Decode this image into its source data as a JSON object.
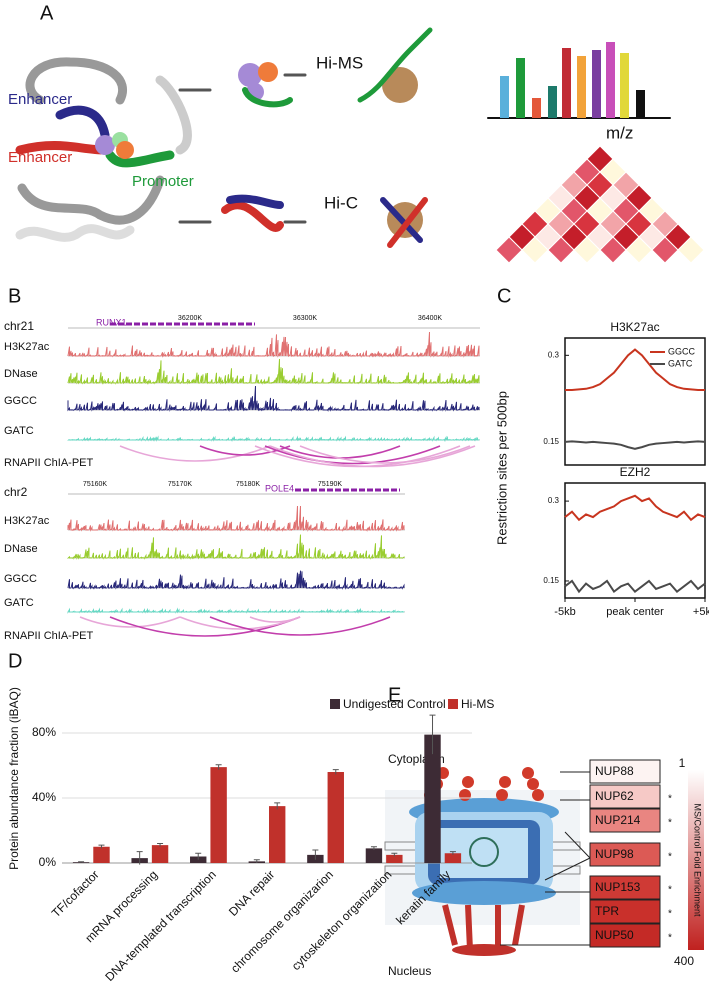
{
  "panel_labels": [
    "A",
    "B",
    "C",
    "D",
    "E"
  ],
  "panel_a": {
    "enhancer_top": "Enhancer",
    "enhancer_bottom": "Enhancer",
    "promoter": "Promoter",
    "hi_ms": "Hi-MS",
    "hi_c": "Hi-C",
    "mz": "m/z"
  },
  "panel_b": {
    "loci": [
      {
        "chrom": "chr21",
        "gene": "RUNX1",
        "coords": [
          "36200K",
          "36300K",
          "36400K"
        ],
        "tracks": [
          "H3K27ac",
          "DNase",
          "GGCC",
          "GATC"
        ],
        "loops": "RNAPII ChIA-PET"
      },
      {
        "chrom": "chr2",
        "gene": "POLE4",
        "coords": [
          "75160K",
          "75170K",
          "75180K",
          "75190K"
        ],
        "tracks": [
          "H3K27ac",
          "DNase",
          "GGCC",
          "GATC"
        ],
        "loops": "RNAPII ChIA-PET"
      }
    ]
  },
  "panel_e": {
    "cytoplasm": "Cytoplasm",
    "nucleus": "Nucleus",
    "proteins": [
      {
        "name": "NUP88",
        "color": "#fdf3f2"
      },
      {
        "name": "NUP62",
        "mark": "*",
        "color": "#f6c9c6"
      },
      {
        "name": "NUP214",
        "mark": "*",
        "color": "#e98581"
      },
      {
        "name": "NUP98",
        "mark": "*",
        "color": "#dc5a55"
      },
      {
        "name": "NUP153",
        "mark": "*",
        "color": "#cf3a35"
      },
      {
        "name": "TPR",
        "mark": "*",
        "color": "#c9302b"
      },
      {
        "name": "NUP50",
        "mark": "*",
        "color": "#c42a26"
      }
    ],
    "colorbar": {
      "range": [
        1,
        400
      ],
      "title": "MS/Control Fold Enrichment",
      "colors": [
        "#ffffff",
        "#c0211f"
      ]
    }
  },
  "chart_data": [
    {
      "type": "line",
      "title": "H3K27ac",
      "ylabel": "Restriction sites per 500bp",
      "x": [
        -5,
        -4.5,
        -4,
        -3.5,
        -3,
        -2.5,
        -2,
        -1.5,
        -1,
        -0.5,
        0,
        0.5,
        1,
        1.5,
        2,
        2.5,
        3,
        3.5,
        4,
        4.5,
        5
      ],
      "xlim": [
        -5,
        5
      ],
      "ylim": [
        0.11,
        0.33
      ],
      "yticks": [
        0.15,
        0.3
      ],
      "legend": "upper right",
      "series": [
        {
          "name": "GGCC",
          "color": "#c8351f",
          "values": [
            0.24,
            0.24,
            0.241,
            0.242,
            0.245,
            0.25,
            0.26,
            0.27,
            0.285,
            0.3,
            0.31,
            0.3,
            0.285,
            0.27,
            0.26,
            0.25,
            0.245,
            0.242,
            0.241,
            0.24,
            0.24
          ]
        },
        {
          "name": "GATC",
          "color": "#4a4a4a",
          "values": [
            0.15,
            0.151,
            0.15,
            0.149,
            0.15,
            0.149,
            0.148,
            0.147,
            0.145,
            0.141,
            0.138,
            0.141,
            0.145,
            0.147,
            0.148,
            0.149,
            0.15,
            0.149,
            0.15,
            0.151,
            0.15
          ]
        }
      ]
    },
    {
      "type": "line",
      "title": "EZH2",
      "x": [
        -5,
        -4.5,
        -4,
        -3.5,
        -3,
        -2.5,
        -2,
        -1.5,
        -1,
        -0.5,
        0,
        0.5,
        1,
        1.5,
        2,
        2.5,
        3,
        3.5,
        4,
        4.5,
        5
      ],
      "xlim": [
        -5,
        5
      ],
      "ylim": [
        0.118,
        0.334
      ],
      "yticks": [
        0.15,
        0.3
      ],
      "xticks": [
        {
          "value": -5,
          "label": "-5kb"
        },
        {
          "value": 0,
          "label": "peak center"
        },
        {
          "value": 5,
          "label": "+5kb"
        }
      ],
      "series": [
        {
          "name": "GGCC",
          "color": "#c8351f",
          "values": [
            0.27,
            0.28,
            0.265,
            0.275,
            0.27,
            0.28,
            0.285,
            0.29,
            0.3,
            0.305,
            0.31,
            0.3,
            0.305,
            0.29,
            0.28,
            0.275,
            0.27,
            0.28,
            0.265,
            0.275,
            0.27
          ]
        },
        {
          "name": "GATC",
          "color": "#4a4a4a",
          "values": [
            0.14,
            0.15,
            0.13,
            0.145,
            0.135,
            0.14,
            0.15,
            0.13,
            0.14,
            0.145,
            0.13,
            0.14,
            0.15,
            0.135,
            0.14,
            0.145,
            0.13,
            0.14,
            0.15,
            0.135,
            0.145
          ]
        }
      ]
    },
    {
      "type": "bar",
      "ylabel": "Protein abundance fraction (iBAQ)",
      "categories": [
        "TF/cofactor",
        "mRNA processing",
        "DNA-templated transcription",
        "DNA repair",
        "chromosome organizarion",
        "cytoskeleton organization",
        "keratin family"
      ],
      "ylim": [
        0,
        104
      ],
      "yticks": [
        {
          "value": 0,
          "label": "0%"
        },
        {
          "value": 40,
          "label": "40%"
        },
        {
          "value": 80,
          "label": "80%"
        }
      ],
      "grid": true,
      "series": [
        {
          "name": "Undigested Control",
          "color": "#3d2b35",
          "values": [
            0.5,
            3,
            4,
            1,
            5,
            9,
            79
          ],
          "errors": [
            0.3,
            4,
            2,
            1,
            3,
            1,
            12
          ]
        },
        {
          "name": "Hi-MS",
          "color": "#c0312b",
          "values": [
            10,
            11,
            59,
            35,
            56,
            5,
            6
          ],
          "errors": [
            1,
            1,
            1.5,
            2,
            1.5,
            1,
            1
          ]
        }
      ]
    }
  ]
}
